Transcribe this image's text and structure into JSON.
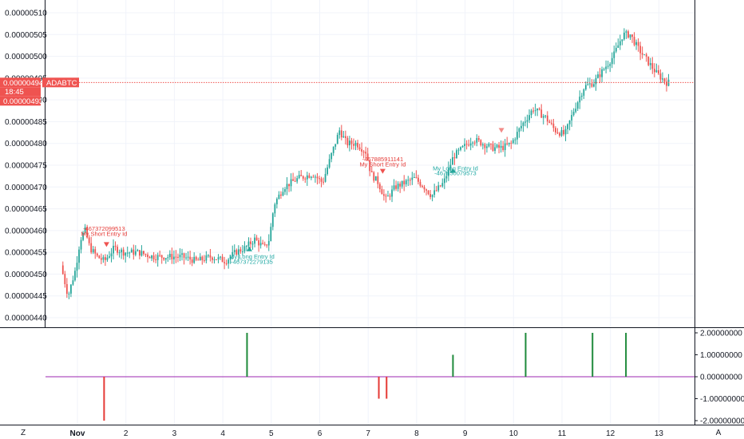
{
  "chart_data": [
    {
      "type": "candlestick",
      "symbol": "ADABTC",
      "last_price_label": "0.00000494",
      "countdown_label": "18:45",
      "secondary_price_label": "0.00000493",
      "last_price": 4.94e-06,
      "ylim": [
        4.375e-06,
        5.125e-06
      ],
      "yticks": [
        "0.00000440",
        "0.00000445",
        "0.00000450",
        "0.00000455",
        "0.00000460",
        "0.00000465",
        "0.00000470",
        "0.00000475",
        "0.00000480",
        "0.00000485",
        "0.00000490",
        "0.00000495",
        "0.00000500",
        "0.00000505",
        "0.00000510"
      ],
      "x_labels": [
        "Nov",
        "2",
        "3",
        "4",
        "5",
        "6",
        "7",
        "8",
        "9",
        "10",
        "11",
        "12",
        "13"
      ],
      "x_range_days": [
        0.65,
        13.5
      ],
      "trend_path": [
        [
          0.7,
          452
        ],
        [
          0.85,
          445
        ],
        [
          1.0,
          451
        ],
        [
          1.1,
          458
        ],
        [
          1.2,
          460
        ],
        [
          1.3,
          456
        ],
        [
          1.45,
          454
        ],
        [
          1.6,
          453
        ],
        [
          1.8,
          456
        ],
        [
          2.0,
          455
        ],
        [
          2.3,
          455
        ],
        [
          2.6,
          454
        ],
        [
          2.9,
          454
        ],
        [
          3.2,
          454
        ],
        [
          3.5,
          453
        ],
        [
          3.8,
          454
        ],
        [
          4.1,
          453
        ],
        [
          4.3,
          455
        ],
        [
          4.5,
          456
        ],
        [
          4.7,
          458
        ],
        [
          4.9,
          456
        ],
        [
          5.0,
          458
        ],
        [
          5.1,
          466
        ],
        [
          5.3,
          470
        ],
        [
          5.6,
          472
        ],
        [
          5.9,
          473
        ],
        [
          6.1,
          471
        ],
        [
          6.3,
          478
        ],
        [
          6.45,
          483
        ],
        [
          6.6,
          480
        ],
        [
          6.8,
          480
        ],
        [
          7.0,
          478
        ],
        [
          7.1,
          473
        ],
        [
          7.25,
          471
        ],
        [
          7.4,
          467
        ],
        [
          7.6,
          470
        ],
        [
          7.8,
          471
        ],
        [
          8.0,
          472
        ],
        [
          8.2,
          470
        ],
        [
          8.35,
          468
        ],
        [
          8.6,
          471
        ],
        [
          8.8,
          477
        ],
        [
          9.0,
          479
        ],
        [
          9.2,
          481
        ],
        [
          9.4,
          480
        ],
        [
          9.6,
          479
        ],
        [
          9.8,
          479
        ],
        [
          10.0,
          480
        ],
        [
          10.2,
          484
        ],
        [
          10.45,
          488
        ],
        [
          10.7,
          486
        ],
        [
          10.9,
          483
        ],
        [
          11.1,
          482
        ],
        [
          11.3,
          488
        ],
        [
          11.5,
          493
        ],
        [
          11.7,
          494
        ],
        [
          11.9,
          497
        ],
        [
          12.1,
          500
        ],
        [
          12.3,
          505
        ],
        [
          12.45,
          505
        ],
        [
          12.6,
          502
        ],
        [
          12.8,
          499
        ],
        [
          13.0,
          496
        ],
        [
          13.2,
          494
        ]
      ],
      "annotations": [
        {
          "text": "-467372099513",
          "x_day": 1.55,
          "y_price": 4.6e-06,
          "color": "#e53935"
        },
        {
          "text": "My Short Entry Id",
          "x_day": 1.55,
          "y_price": 4.588e-06,
          "color": "#e53935"
        },
        {
          "text": "My Long Entry Id",
          "x_day": 4.6,
          "y_price": 4.536e-06,
          "color": "#22a9a4"
        },
        {
          "text": "-467372279135",
          "x_day": 4.6,
          "y_price": 4.524e-06,
          "color": "#22a9a4"
        },
        {
          "text": "-467885911141",
          "x_day": 7.3,
          "y_price": 4.759e-06,
          "color": "#e53935"
        },
        {
          "text": "My Short Entry Id",
          "x_day": 7.3,
          "y_price": 4.747e-06,
          "color": "#e53935"
        },
        {
          "text": "My Long Entry Id",
          "x_day": 8.8,
          "y_price": 4.738e-06,
          "color": "#22a9a4"
        },
        {
          "text": "-467850079573",
          "x_day": 8.8,
          "y_price": 4.727e-06,
          "color": "#22a9a4"
        }
      ],
      "markers": [
        {
          "type": "sell",
          "x_day": 1.6,
          "y_price": 4.568e-06
        },
        {
          "type": "buy",
          "x_day": 4.55,
          "y_price": 4.558e-06
        },
        {
          "type": "sell",
          "x_day": 7.3,
          "y_price": 4.736e-06
        },
        {
          "type": "buy",
          "x_day": 8.75,
          "y_price": 4.738e-06
        },
        {
          "type": "sell-hollow",
          "x_day": 9.75,
          "y_price": 4.83e-06
        }
      ]
    },
    {
      "type": "histogram",
      "ylim": [
        -2.5,
        2.25
      ],
      "yticks": [
        "2.00000000",
        "1.00000000",
        "0.00000000",
        "-1.00000000",
        "-2.00000000"
      ],
      "ytick_values": [
        2,
        1,
        0,
        -1,
        -2
      ],
      "bars": [
        {
          "x_day": 1.55,
          "value": -2,
          "color": "#e53935"
        },
        {
          "x_day": 4.5,
          "value": 2,
          "color": "#1e8a3a"
        },
        {
          "x_day": 7.22,
          "value": -1,
          "color": "#e53935"
        },
        {
          "x_day": 7.38,
          "value": -1,
          "color": "#e53935"
        },
        {
          "x_day": 8.75,
          "value": 1,
          "color": "#1e8a3a"
        },
        {
          "x_day": 10.25,
          "value": 2,
          "color": "#1e8a3a"
        },
        {
          "x_day": 11.63,
          "value": 2,
          "color": "#1e8a3a"
        },
        {
          "x_day": 12.32,
          "value": 2,
          "color": "#1e8a3a"
        }
      ]
    }
  ],
  "footer": {
    "left_button": "Z",
    "right_button": "A"
  },
  "colors": {
    "up": "#26a69a",
    "down": "#ef5350",
    "zero_line": "#9c27b0",
    "price_line": "#ef5350"
  }
}
